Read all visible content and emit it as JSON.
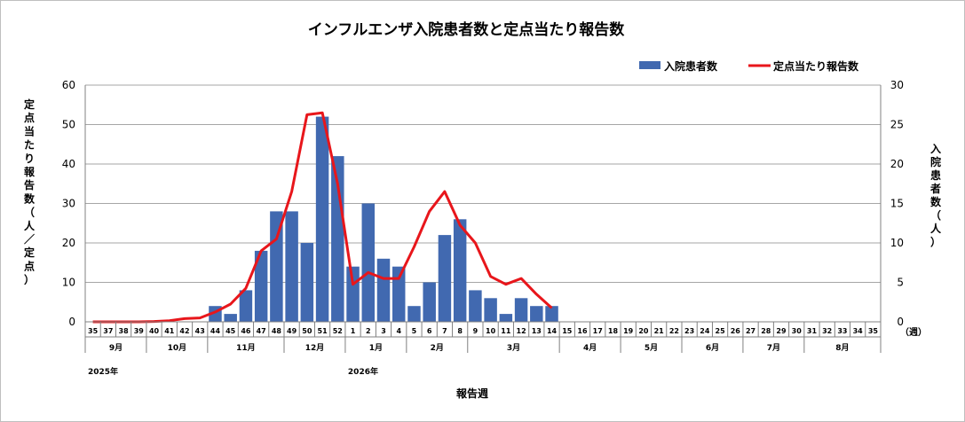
{
  "chart_data": {
    "type": "bar",
    "title": "インフルエンザ入院患者数と定点当たり報告数",
    "legend": {
      "placement": "top-right",
      "bar_label": "入院患者数",
      "line_label": "定点当たり報告数"
    },
    "colors": {
      "bar": "#4169b0",
      "line": "#e8161b",
      "grid": "#a6a6a6"
    },
    "left_axis": {
      "label": "定点当たり報告数（人／定点）",
      "label_chars": [
        "定",
        "点",
        "当",
        "た",
        "り",
        "報",
        "告",
        "数",
        "（",
        "人",
        "／",
        "定",
        "点",
        "）"
      ],
      "ylim": [
        0,
        60
      ],
      "ticks": [
        "0",
        "10",
        "20",
        "30",
        "40",
        "50",
        "60"
      ]
    },
    "right_axis": {
      "label": "入院患者数（人）",
      "label_chars": [
        "入",
        "院",
        "患",
        "者",
        "数",
        "（",
        "人",
        "）"
      ],
      "ylim": [
        0,
        30
      ],
      "ticks": [
        "0",
        "5",
        "10",
        "15",
        "20",
        "25",
        "30"
      ]
    },
    "xlabel": "報告週",
    "x_unit": "（週）",
    "categories": [
      "35",
      "37",
      "38",
      "39",
      "40",
      "41",
      "42",
      "43",
      "44",
      "45",
      "46",
      "47",
      "48",
      "49",
      "50",
      "51",
      "52",
      "1",
      "2",
      "3",
      "4",
      "5",
      "6",
      "7",
      "8",
      "9",
      "10",
      "11",
      "12",
      "13",
      "14",
      "15",
      "16",
      "17",
      "18",
      "19",
      "20",
      "21",
      "22",
      "23",
      "24",
      "25",
      "26",
      "27",
      "28",
      "29",
      "30",
      "31",
      "32",
      "33",
      "34",
      "35"
    ],
    "months": [
      {
        "label": "9月",
        "start": 0,
        "end": 3
      },
      {
        "label": "10月",
        "start": 4,
        "end": 7
      },
      {
        "label": "11月",
        "start": 8,
        "end": 12
      },
      {
        "label": "12月",
        "start": 13,
        "end": 16
      },
      {
        "label": "1月",
        "start": 17,
        "end": 20
      },
      {
        "label": "2月",
        "start": 21,
        "end": 24
      },
      {
        "label": "3月",
        "start": 25,
        "end": 30
      },
      {
        "label": "4月",
        "start": 31,
        "end": 34
      },
      {
        "label": "5月",
        "start": 35,
        "end": 38
      },
      {
        "label": "6月",
        "start": 39,
        "end": 42
      },
      {
        "label": "7月",
        "start": 43,
        "end": 46
      },
      {
        "label": "8月",
        "start": 47,
        "end": 51
      }
    ],
    "years": [
      {
        "label": "2025年",
        "index": 0
      },
      {
        "label": "2026年",
        "index": 17
      }
    ],
    "series": [
      {
        "name": "入院患者数",
        "type": "bar",
        "axis": "right",
        "values": [
          null,
          null,
          null,
          null,
          null,
          null,
          null,
          null,
          2,
          1,
          4,
          9,
          14,
          14,
          10,
          26,
          21,
          7,
          15,
          8,
          7,
          2,
          5,
          11,
          13,
          4,
          3,
          1,
          3,
          2,
          2,
          null,
          null,
          null,
          null,
          null,
          null,
          null,
          null,
          null,
          null,
          null,
          null,
          null,
          null,
          null,
          null,
          null,
          null,
          null,
          null,
          null
        ]
      },
      {
        "name": "定点当たり報告数",
        "type": "line",
        "axis": "left",
        "values": [
          0.0,
          0.0,
          0.0,
          0.0,
          0.1,
          0.3,
          0.8,
          1.0,
          2.5,
          4.5,
          8.5,
          18.0,
          21.0,
          33.0,
          52.5,
          53.0,
          35.0,
          9.5,
          12.5,
          11.0,
          11.0,
          19.0,
          28.0,
          33.0,
          24.5,
          20.0,
          11.5,
          9.5,
          11.0,
          7.0,
          3.5,
          null,
          null,
          null,
          null,
          null,
          null,
          null,
          null,
          null,
          null,
          null,
          null,
          null,
          null,
          null,
          null,
          null,
          null,
          null,
          null,
          null
        ]
      }
    ]
  }
}
